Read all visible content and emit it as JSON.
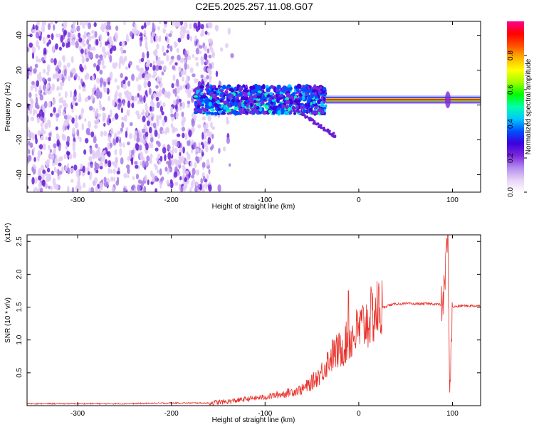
{
  "title": "C2E5.2025.257.11.08.G07",
  "chart_data": [
    {
      "type": "heatmap",
      "xlabel": "Height of straight line (km)",
      "ylabel": "Frequency (Hz)",
      "xlim": [
        -354,
        130
      ],
      "ylim": [
        -50,
        48
      ],
      "x_ticks": [
        -300,
        -200,
        -100,
        0,
        100
      ],
      "y_ticks": [
        -40,
        -20,
        0,
        20,
        40
      ],
      "colorbar": {
        "label": "Normalized spectral amplitude",
        "range": [
          0,
          1
        ],
        "ticks": [
          "0.0",
          "0.2",
          "0.4",
          "0.6",
          "0.8"
        ],
        "colors": [
          "#ffffff",
          "#e6d2f5",
          "#b48cf0",
          "#7b28dc",
          "#3c00dc",
          "#0050ff",
          "#00c8ff",
          "#00ffaa",
          "#00ff00",
          "#a0ff00",
          "#ffff00",
          "#ffb400",
          "#ff5000",
          "#ff0000",
          "#ff0090"
        ]
      },
      "regions": [
        {
          "x": [
            -354,
            -155
          ],
          "freq_range": [
            -50,
            48
          ],
          "amplitude": 0.12,
          "description": "broadband noise"
        },
        {
          "x": [
            -175,
            -35
          ],
          "freq_center": [
            3,
            2
          ],
          "freq_width": 16,
          "amplitude": 0.35
        },
        {
          "x": [
            -35,
            130
          ],
          "freq_center": [
            3,
            3
          ],
          "freq_width": 2,
          "amplitude": 0.9
        }
      ]
    },
    {
      "type": "line",
      "xlabel": "Height of straight line (km)",
      "ylabel": "SNR (10 * v/v)",
      "y_multiplier": "(x10⁴)",
      "xlim": [
        -354,
        130
      ],
      "ylim": [
        0,
        2.6
      ],
      "x_ticks": [
        -300,
        -200,
        -100,
        0,
        100
      ],
      "y_ticks": [
        0.5,
        1.0,
        1.5,
        2.0,
        2.5
      ],
      "color": "#e8312a",
      "series": [
        {
          "x": [
            -354,
            -300,
            -250,
            -200,
            -160,
            -140,
            -120,
            -100,
            -80,
            -60,
            -50,
            -40,
            -30,
            -20,
            -10,
            0,
            10,
            20,
            30,
            40,
            60,
            80,
            90,
            95,
            97,
            100,
            110,
            130
          ],
          "y": [
            0.03,
            0.03,
            0.03,
            0.04,
            0.04,
            0.06,
            0.1,
            0.13,
            0.18,
            0.25,
            0.35,
            0.5,
            0.75,
            0.85,
            1.0,
            1.15,
            1.3,
            1.45,
            1.52,
            1.55,
            1.55,
            1.55,
            1.53,
            2.6,
            0.2,
            1.5,
            1.52,
            1.52
          ]
        }
      ],
      "spikes": [
        {
          "x": -11,
          "y": 1.75
        },
        {
          "x": 95,
          "y": 2.6
        },
        {
          "x": 97,
          "y": 0.2
        }
      ]
    }
  ]
}
